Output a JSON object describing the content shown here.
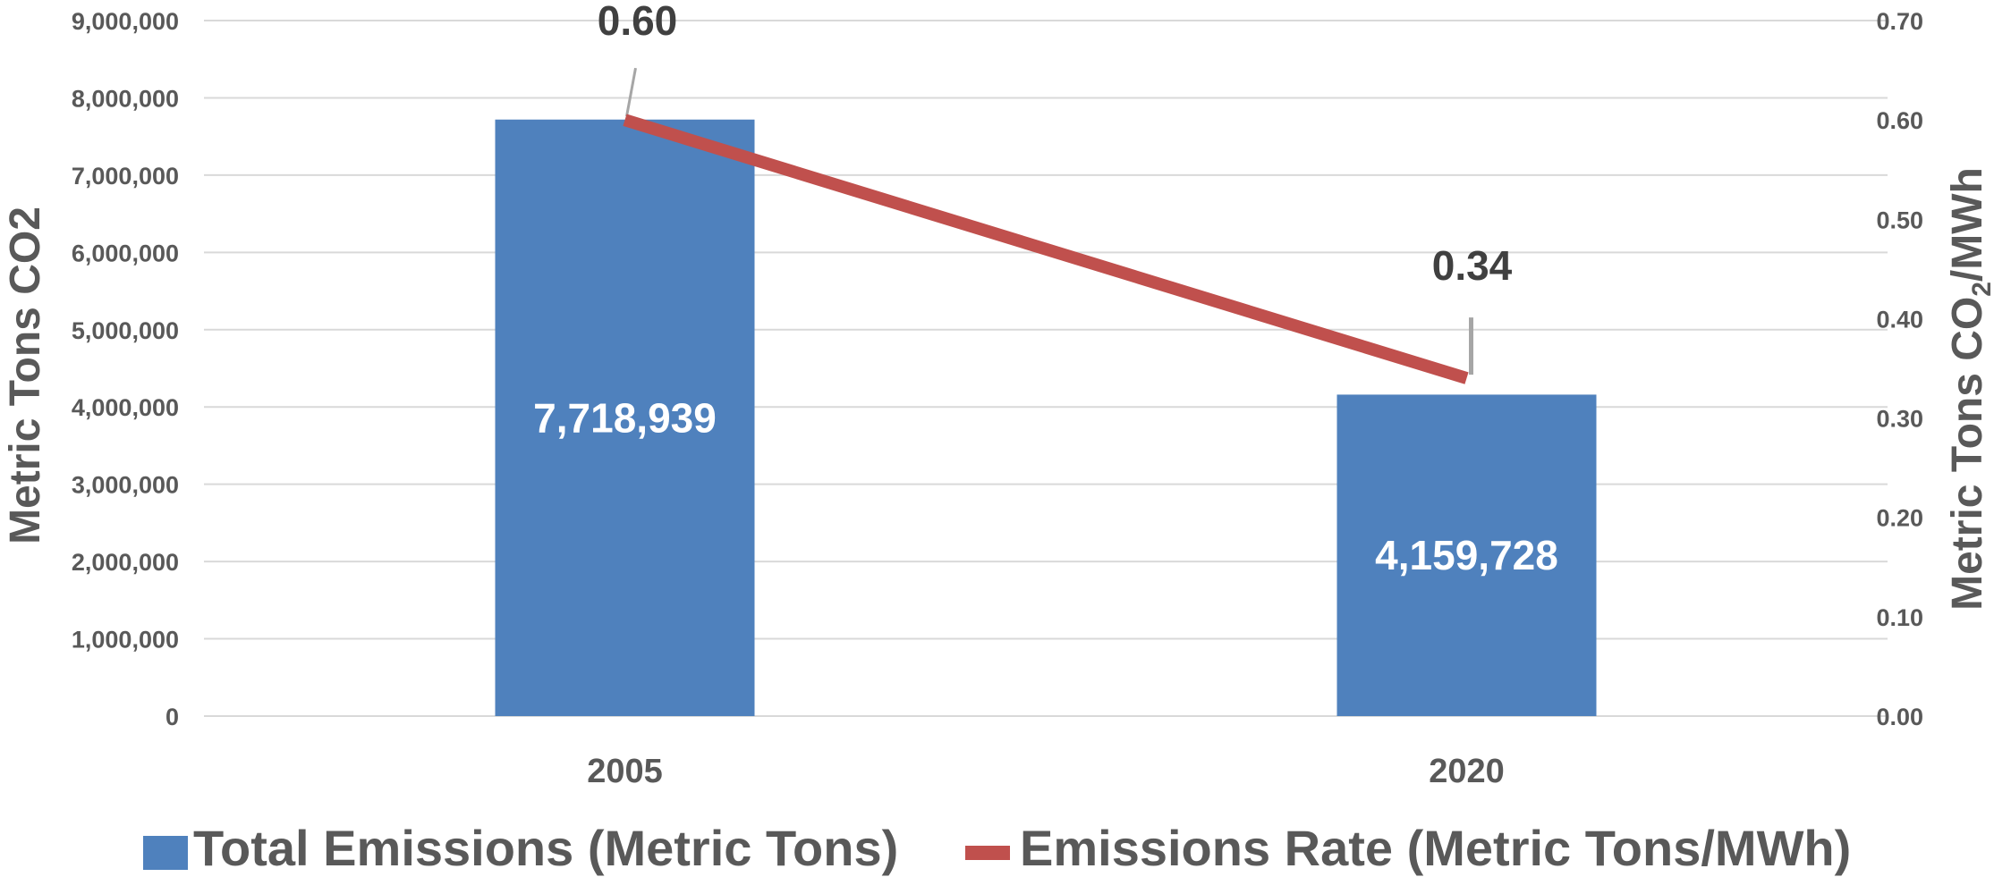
{
  "chart_data": {
    "type": "bar",
    "categories": [
      "2005",
      "2020"
    ],
    "series": [
      {
        "name": "Total Emissions (Metric Tons)",
        "type": "bar",
        "axis": "left",
        "values": [
          7718939,
          4159728
        ],
        "labels": [
          "7,718,939",
          "4,159,728"
        ],
        "color": "#4F81BD"
      },
      {
        "name": "Emissions Rate (Metric Tons/MWh)",
        "type": "line",
        "axis": "right",
        "values": [
          0.6,
          0.34
        ],
        "labels": [
          "0.60",
          "0.34"
        ],
        "color": "#C0504D"
      }
    ],
    "ylabel": "Metric Tons CO2",
    "y2label": {
      "prefix": "Metric Tons CO",
      "subscript": "2",
      "suffix": "/MWh"
    },
    "ylim": [
      0,
      9000000
    ],
    "y2lim": [
      0,
      0.7
    ],
    "yticks": [
      "0",
      "1,000,000",
      "2,000,000",
      "3,000,000",
      "4,000,000",
      "5,000,000",
      "6,000,000",
      "7,000,000",
      "8,000,000",
      "9,000,000"
    ],
    "y2ticks": [
      "0.00",
      "0.10",
      "0.20",
      "0.30",
      "0.40",
      "0.50",
      "0.60",
      "0.70"
    ],
    "grid": true,
    "legend_position": "bottom",
    "leader_line_color": "#A6A6A6"
  }
}
